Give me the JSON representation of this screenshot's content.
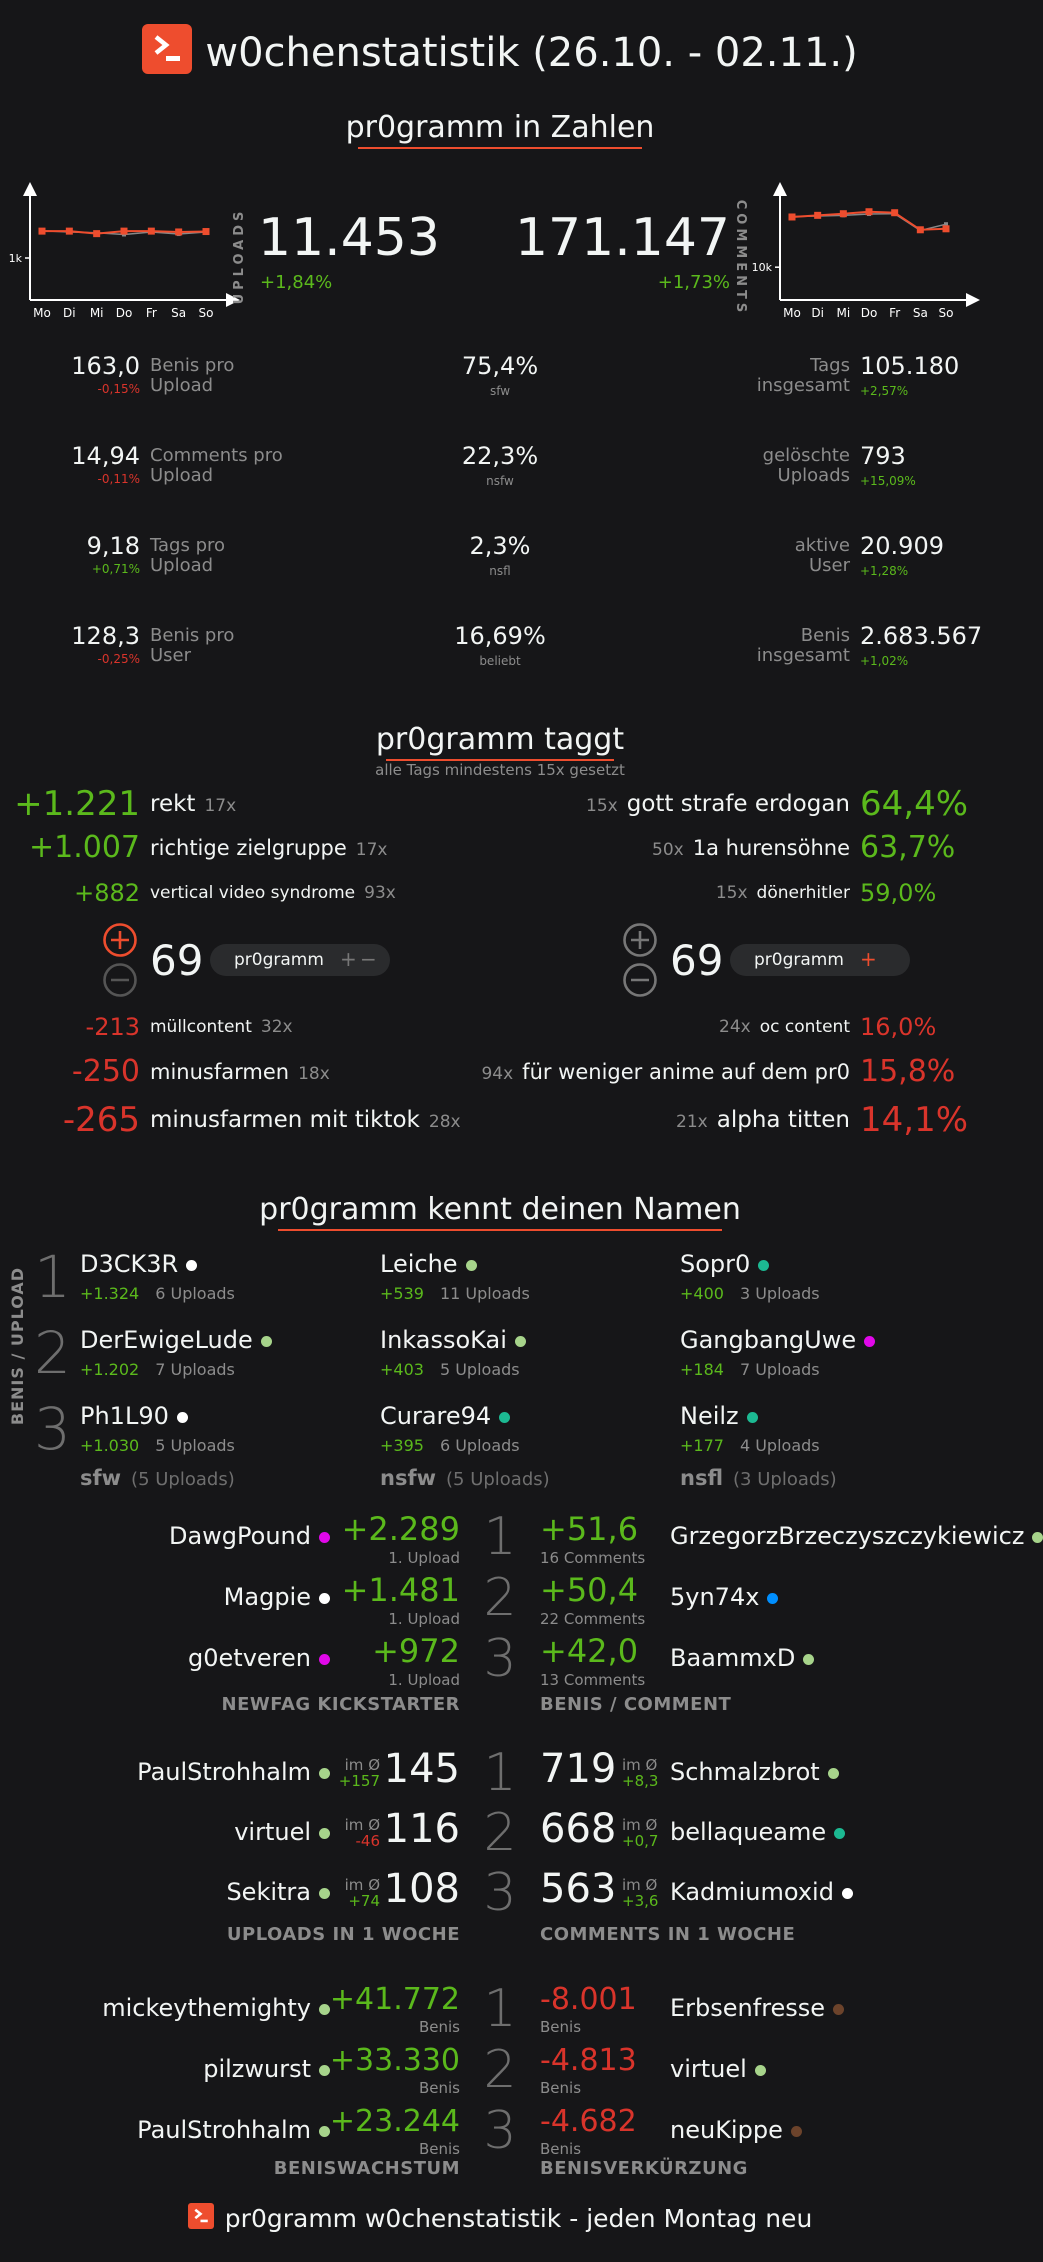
{
  "title": "w0chenstatistik (26.10. - 02.11.)",
  "sections": {
    "zahlen": "pr0gramm in Zahlen",
    "taggt": "pr0gramm taggt",
    "taggt_sub": "alle Tags mindestens 15x gesetzt",
    "namen": "pr0gramm kennt deinen Namen",
    "footer": "pr0gramm w0chenstatistik - jeden Montag neu"
  },
  "uploads": {
    "label": "UPLOADS",
    "value": "11.453",
    "change": "+1,84%"
  },
  "comments": {
    "label": "COMMENTS",
    "value": "171.147",
    "change": "+1,73%"
  },
  "days": [
    "Mo",
    "Di",
    "Mi",
    "Do",
    "Fr",
    "Sa",
    "So"
  ],
  "chart_data": [
    {
      "type": "line",
      "xlabel": "",
      "ylabel": "",
      "categories": [
        "Mo",
        "Di",
        "Mi",
        "Do",
        "Fr",
        "Sa",
        "So"
      ],
      "yticks": [
        "1k"
      ],
      "ylim": [
        0,
        2500
      ],
      "series": [
        {
          "values": [
            1640,
            1640,
            1580,
            1640,
            1640,
            1620,
            1630
          ],
          "color": "#ee4d2e"
        },
        {
          "values": [
            1650,
            1620,
            1600,
            1560,
            1620,
            1570,
            1620
          ],
          "color": "#888888"
        }
      ]
    },
    {
      "type": "line",
      "xlabel": "",
      "ylabel": "",
      "categories": [
        "Mo",
        "Di",
        "Mi",
        "Do",
        "Fr",
        "Sa",
        "So"
      ],
      "yticks": [
        "10k"
      ],
      "ylim": [
        0,
        32000
      ],
      "series": [
        {
          "values": [
            25300,
            25800,
            26300,
            26900,
            26600,
            21400,
            21700
          ],
          "color": "#ee4d2e"
        },
        {
          "values": [
            25400,
            25600,
            25800,
            26200,
            26300,
            21200,
            23100
          ],
          "color": "#888888"
        }
      ]
    }
  ],
  "stats_left": [
    {
      "value": "163,0",
      "change": "-0,15%",
      "label1": "Benis pro",
      "label2": "Upload",
      "dir": "neg"
    },
    {
      "value": "14,94",
      "change": "-0,11%",
      "label1": "Comments pro",
      "label2": "Upload",
      "dir": "neg"
    },
    {
      "value": "9,18",
      "change": "+0,71%",
      "label1": "Tags pro",
      "label2": "Upload",
      "dir": "pos"
    },
    {
      "value": "128,3",
      "change": "-0,25%",
      "label1": "Benis pro",
      "label2": "User",
      "dir": "neg"
    }
  ],
  "stats_mid": [
    {
      "value": "75,4%",
      "label": "sfw"
    },
    {
      "value": "22,3%",
      "label": "nsfw"
    },
    {
      "value": "2,3%",
      "label": "nsfl"
    },
    {
      "value": "16,69%",
      "label": "beliebt"
    }
  ],
  "stats_right": [
    {
      "value": "105.180",
      "change": "+2,57%",
      "label1": "Tags",
      "label2": "insgesamt"
    },
    {
      "value": "793",
      "change": "+15,09%",
      "label1": "gelöschte",
      "label2": "Uploads"
    },
    {
      "value": "20.909",
      "change": "+1,28%",
      "label1": "aktive",
      "label2": "User"
    },
    {
      "value": "2.683.567",
      "change": "+1,02%",
      "label1": "Benis",
      "label2": "insgesamt"
    }
  ],
  "tags_top_left": [
    {
      "score": "+1.221",
      "name": "rekt",
      "count": "17x"
    },
    {
      "score": "+1.007",
      "name": "richtige zielgruppe",
      "count": "17x"
    },
    {
      "score": "+882",
      "name": "vertical video syndrome",
      "count": "93x"
    }
  ],
  "tags_top_right": [
    {
      "count": "15x",
      "name": "gott strafe erdogan",
      "pct": "64,4%"
    },
    {
      "count": "50x",
      "name": "1a hurensöhne",
      "pct": "63,7%"
    },
    {
      "count": "15x",
      "name": "dönerhitler",
      "pct": "59,0%"
    }
  ],
  "tags_bottom_left": [
    {
      "score": "-213",
      "name": "müllcontent",
      "count": "32x"
    },
    {
      "score": "-250",
      "name": "minusfarmen",
      "count": "18x"
    },
    {
      "score": "-265",
      "name": "minusfarmen mit tiktok",
      "count": "28x"
    }
  ],
  "tags_bottom_right": [
    {
      "count": "24x",
      "name": "oc content",
      "pct": "16,0%"
    },
    {
      "count": "94x",
      "name": "für weniger anime auf dem pr0",
      "pct": "15,8%"
    },
    {
      "count": "21x",
      "name": "alpha titten",
      "pct": "14,1%"
    }
  ],
  "vote": {
    "score_left": "69",
    "score_right": "69",
    "tag": "pr0gramm",
    "plus": "+",
    "minus": "−"
  },
  "benis_upload": {
    "side_label": "BENIS / UPLOAD",
    "ranks": [
      "1",
      "2",
      "3"
    ],
    "cols": [
      {
        "cat": "sfw",
        "uploads": "(5 Uploads)",
        "users": [
          {
            "name": "D3CK3R",
            "color": "#ffffff",
            "benis": "+1.324",
            "uploads": "6 Uploads"
          },
          {
            "name": "DerEwigeLude",
            "color": "#a7d48b",
            "benis": "+1.202",
            "uploads": "7 Uploads"
          },
          {
            "name": "Ph1L90",
            "color": "#ffffff",
            "benis": "+1.030",
            "uploads": "5 Uploads"
          }
        ]
      },
      {
        "cat": "nsfw",
        "uploads": "(5 Uploads)",
        "users": [
          {
            "name": "Leiche",
            "color": "#a7d48b",
            "benis": "+539",
            "uploads": "11 Uploads"
          },
          {
            "name": "InkassoKai",
            "color": "#a7d48b",
            "benis": "+403",
            "uploads": "5 Uploads"
          },
          {
            "name": "Curare94",
            "color": "#1cb992",
            "benis": "+395",
            "uploads": "6 Uploads"
          }
        ]
      },
      {
        "cat": "nsfl",
        "uploads": "(3 Uploads)",
        "users": [
          {
            "name": "Sopr0",
            "color": "#1cb992",
            "benis": "+400",
            "uploads": "3 Uploads"
          },
          {
            "name": "GangbangUwe",
            "color": "#e108e9",
            "benis": "+184",
            "uploads": "7 Uploads"
          },
          {
            "name": "Neilz",
            "color": "#1cb992",
            "benis": "+177",
            "uploads": "4 Uploads"
          }
        ]
      }
    ]
  },
  "newfag": {
    "label": "NEWFAG KICKSTARTER",
    "rows": [
      {
        "name": "DawgPound",
        "color": "#e108e9",
        "value": "+2.289",
        "sub": "1. Upload"
      },
      {
        "name": "Magpie",
        "color": "#ffffff",
        "value": "+1.481",
        "sub": "1. Upload"
      },
      {
        "name": "g0etveren",
        "color": "#e108e9",
        "value": "+972",
        "sub": "1. Upload"
      }
    ]
  },
  "benis_comment": {
    "label": "BENIS / COMMENT",
    "rows": [
      {
        "name": "GrzegorzBrzeczyszczykiewicz",
        "color": "#a7d48b",
        "value": "+51,6",
        "sub": "16 Comments"
      },
      {
        "name": "5yn74x",
        "color": "#008fff",
        "value": "+50,4",
        "sub": "22 Comments"
      },
      {
        "name": "BaammxD",
        "color": "#a7d48b",
        "value": "+42,0",
        "sub": "13 Comments"
      }
    ]
  },
  "uploads_week": {
    "label": "UPLOADS IN 1 WOCHE",
    "im": "im Ø",
    "rows": [
      {
        "name": "PaulStrohhalm",
        "color": "#a7d48b",
        "avg": "+157",
        "avgdir": "pos",
        "value": "145"
      },
      {
        "name": "virtuel",
        "color": "#a7d48b",
        "avg": "-46",
        "avgdir": "neg",
        "value": "116"
      },
      {
        "name": "Sekitra",
        "color": "#a7d48b",
        "avg": "+74",
        "avgdir": "pos",
        "value": "108"
      }
    ]
  },
  "comments_week": {
    "label": "COMMENTS IN 1 WOCHE",
    "im": "im Ø",
    "rows": [
      {
        "name": "Schmalzbrot",
        "color": "#a7d48b",
        "avg": "+8,3",
        "value": "719"
      },
      {
        "name": "bellaqueame",
        "color": "#1cb992",
        "avg": "+0,7",
        "value": "668"
      },
      {
        "name": "Kadmiumoxid",
        "color": "#ffffff",
        "avg": "+3,6",
        "value": "563"
      }
    ]
  },
  "beniswachstum": {
    "label": "BENISWACHSTUM",
    "sub": "Benis",
    "rows": [
      {
        "name": "mickeythemighty",
        "color": "#a7d48b",
        "value": "+41.772"
      },
      {
        "name": "pilzwurst",
        "color": "#a7d48b",
        "value": "+33.330"
      },
      {
        "name": "PaulStrohhalm",
        "color": "#a7d48b",
        "value": "+23.244"
      }
    ]
  },
  "benisverkuerzung": {
    "label": "BENISVERKÜRZUNG",
    "sub": "Benis",
    "rows": [
      {
        "name": "Erbsenfresse",
        "color": "#6c432b",
        "value": "-8.001"
      },
      {
        "name": "virtuel",
        "color": "#a7d48b",
        "value": "-4.813"
      },
      {
        "name": "neuKippe",
        "color": "#6c432b",
        "value": "-4.682"
      }
    ]
  },
  "ranks": [
    "1",
    "2",
    "3"
  ]
}
